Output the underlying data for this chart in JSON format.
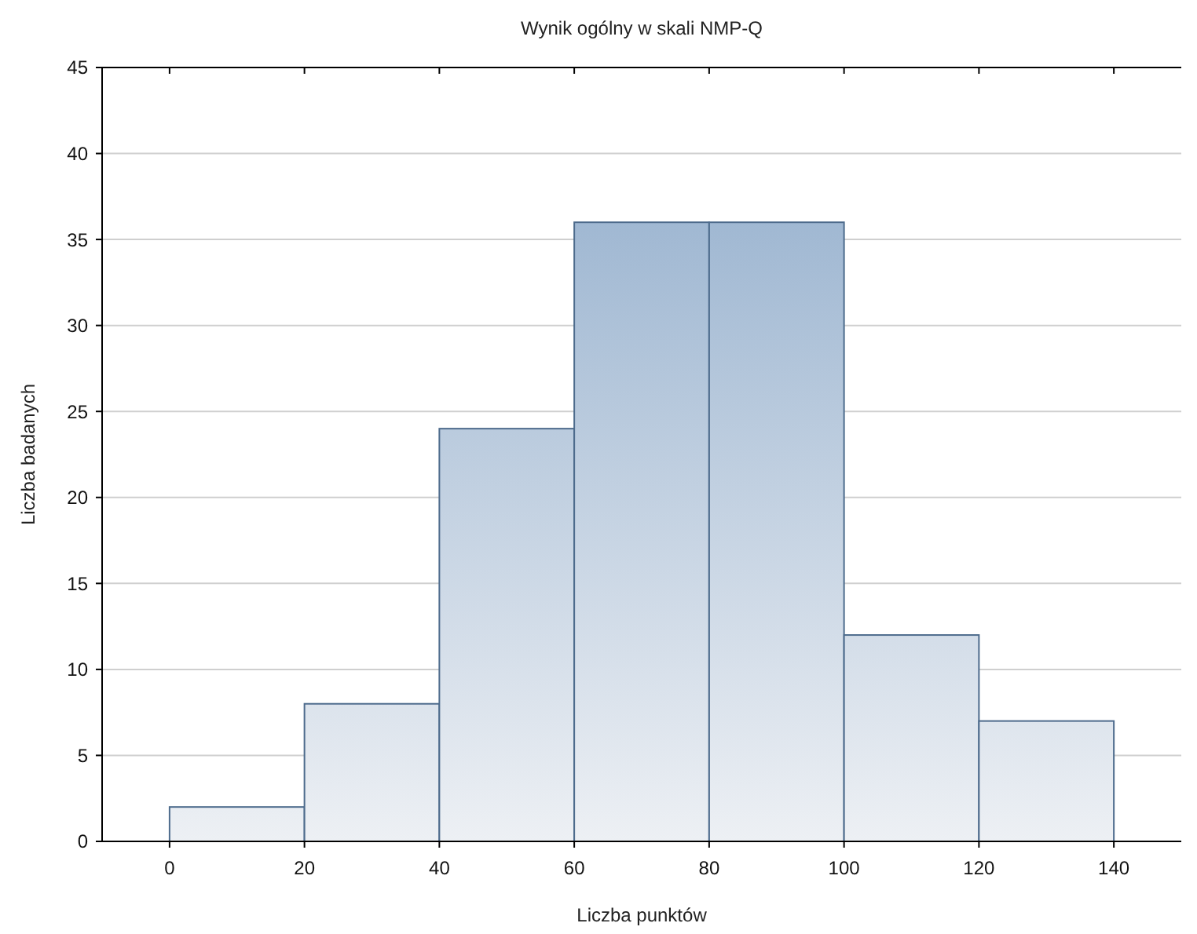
{
  "chart_data": {
    "type": "histogram",
    "title": "Wynik ogólny w skali NMP-Q",
    "xlabel": "Liczba punktów",
    "ylabel": "Liczba badanych",
    "bins": [
      0,
      20,
      40,
      60,
      80,
      100,
      120,
      140
    ],
    "values": [
      2,
      8,
      24,
      36,
      36,
      12,
      7
    ],
    "color": "#4d6b8c",
    "xlim": [
      -10,
      150
    ],
    "xticks": [
      0,
      20,
      40,
      60,
      80,
      100,
      120,
      140
    ],
    "ylim": [
      0,
      45
    ],
    "yticks": [
      0,
      5,
      10,
      15,
      20,
      25,
      30,
      35,
      40,
      45
    ],
    "grid": "y"
  }
}
